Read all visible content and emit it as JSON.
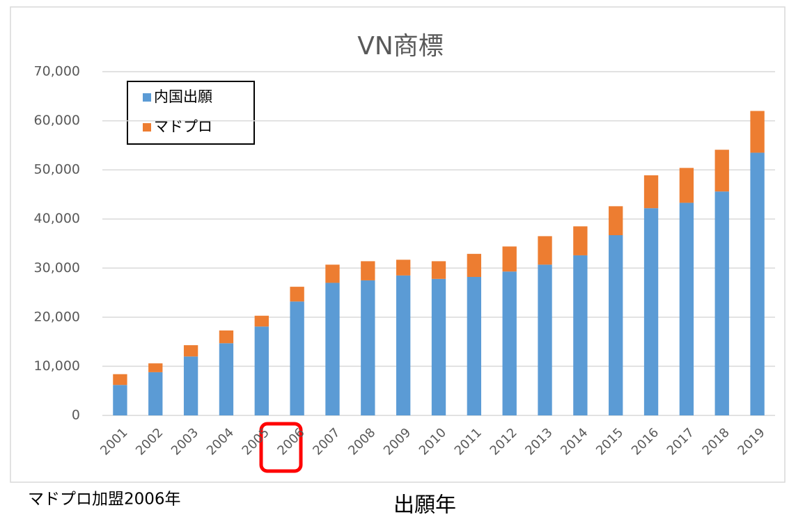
{
  "chart_data": {
    "type": "stacked_bar",
    "title": "VN商標",
    "categories": [
      "2001",
      "2002",
      "2003",
      "2004",
      "2005",
      "2006",
      "2007",
      "2008",
      "2009",
      "2010",
      "2011",
      "2012",
      "2013",
      "2014",
      "2015",
      "2016",
      "2017",
      "2018",
      "2019"
    ],
    "series": [
      {
        "name": "内国出願",
        "color": "#5b9bd5",
        "values": [
          6200,
          8800,
          12000,
          14700,
          18100,
          23200,
          27000,
          27500,
          28500,
          27800,
          28200,
          29300,
          30700,
          32600,
          36700,
          42200,
          43300,
          45600,
          53500
        ]
      },
      {
        "name": "マドプロ",
        "color": "#ed7d31",
        "values": [
          2200,
          1800,
          2300,
          2600,
          2200,
          3000,
          3700,
          3900,
          3200,
          3600,
          4700,
          5100,
          5800,
          5900,
          5900,
          6700,
          7100,
          8500,
          8500
        ]
      }
    ],
    "ylim": [
      0,
      70000
    ],
    "yticks": [
      0,
      {
        "value": 10000,
        "label": "10,000"
      },
      {
        "value": 20000,
        "label": "20,000"
      },
      {
        "value": 30000,
        "label": "30,000"
      },
      {
        "value": 40000,
        "label": "40,000"
      },
      {
        "value": 50000,
        "label": "50,000"
      },
      {
        "value": 60000,
        "label": "60,000"
      },
      {
        "value": 70000,
        "label": "70,000"
      }
    ],
    "grid": true,
    "legend": "top-left",
    "x_label": "出願年",
    "annotation": "マドプロ加盟2006年"
  }
}
